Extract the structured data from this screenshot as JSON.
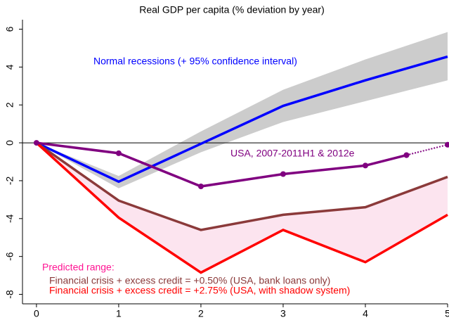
{
  "chart_data": {
    "type": "line",
    "title": "Real GDP per capita (% deviation by year)",
    "xlim": [
      -0.17,
      5
    ],
    "ylim": [
      -8.5,
      6.5
    ],
    "xticks": [
      0,
      1,
      2,
      3,
      4,
      5
    ],
    "yticks": [
      -8,
      -6,
      -4,
      -2,
      0,
      2,
      4,
      6
    ],
    "reference_line": 0,
    "bands": [
      {
        "color": "#cccccc",
        "x": [
          0,
          1,
          2,
          3,
          4,
          5
        ],
        "lower": [
          0,
          -2.4,
          -0.5,
          1.1,
          2.2,
          3.3
        ],
        "upper": [
          0,
          -1.75,
          0.6,
          2.8,
          4.4,
          5.85
        ]
      }
    ],
    "fill_between_series": [
      3,
      4
    ],
    "fill_between_color": "#fce4ef",
    "series": [
      {
        "name": "Normal recessions (+ 95% confidence interval)",
        "color": "#0000ff",
        "x": [
          0,
          1,
          2,
          3,
          4,
          5
        ],
        "values": [
          0,
          -2.05,
          -0.05,
          1.95,
          3.3,
          4.55
        ]
      },
      {
        "name": "USA, 2007-2011H1 & 2012e",
        "color": "#800080",
        "markers": true,
        "x": [
          0,
          1,
          2,
          3,
          4,
          4.5
        ],
        "values": [
          0,
          -0.55,
          -2.3,
          -1.65,
          -1.2,
          -0.65
        ]
      },
      {
        "color": "#800080",
        "dashed": true,
        "markers": true,
        "x": [
          4.5,
          5
        ],
        "values": [
          -0.65,
          -0.1
        ]
      },
      {
        "name": "Financial crisis + excess credit = +0.50% (USA, bank loans only)",
        "color": "#8b3a3a",
        "x": [
          0,
          1,
          2,
          3,
          4,
          5
        ],
        "values": [
          0,
          -3.05,
          -4.6,
          -3.8,
          -3.4,
          -1.8
        ]
      },
      {
        "name": "Financial crisis + excess credit = +2.75% (USA, with shadow system)",
        "color": "#ff0000",
        "x": [
          0,
          1,
          2,
          3,
          4,
          5
        ],
        "values": [
          0,
          -3.95,
          -6.85,
          -4.6,
          -6.3,
          -3.8
        ]
      }
    ],
    "annotation": "Predicted range:",
    "annotation_color": "#ff1493"
  }
}
